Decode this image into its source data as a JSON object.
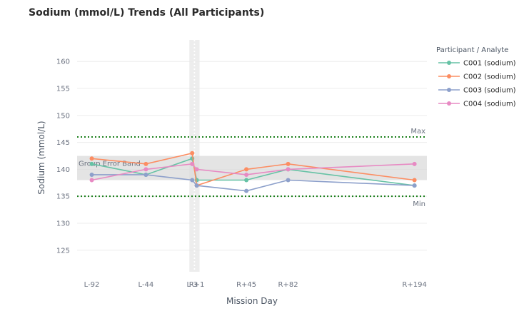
{
  "chart_data": {
    "type": "line",
    "title": "Sodium (mmol/L) Trends (All Participants)",
    "xlabel": "Mission Day",
    "ylabel": "Sodium (mmol/L)",
    "ylim": [
      121,
      164
    ],
    "yticks": [
      125,
      130,
      135,
      140,
      145,
      150,
      155,
      160
    ],
    "x_numeric_range": [
      -105,
      205
    ],
    "categories": [
      {
        "label": "L-92",
        "day": -92
      },
      {
        "label": "L-44",
        "day": -44
      },
      {
        "label": "L-3",
        "day": -3
      },
      {
        "label": "R+1",
        "day": 1
      },
      {
        "label": "R+45",
        "day": 45
      },
      {
        "label": "R+82",
        "day": 82
      },
      {
        "label": "R+194",
        "day": 194
      }
    ],
    "legend_title": "Participant / Analyte",
    "series": [
      {
        "name": "C001 (sodium)",
        "color": "#66c2a5",
        "values": [
          141,
          139,
          142,
          138,
          138,
          140,
          137
        ]
      },
      {
        "name": "C002 (sodium)",
        "color": "#fc8d62",
        "values": [
          142,
          141,
          143,
          137,
          140,
          141,
          138
        ]
      },
      {
        "name": "C003 (sodium)",
        "color": "#8da0cb",
        "values": [
          139,
          139,
          138,
          137,
          136,
          138,
          137
        ]
      },
      {
        "name": "C004 (sodium)",
        "color": "#e78ac3",
        "values": [
          138,
          140,
          141,
          140,
          139,
          140,
          141
        ]
      }
    ],
    "reference_lines": [
      {
        "label": "Max",
        "y": 146,
        "color": "#1a7f1a"
      },
      {
        "label": "Min",
        "y": 135,
        "color": "#1a7f1a"
      }
    ],
    "error_band": {
      "label": "Group Error Band",
      "y_low": 138,
      "y_high": 142.5
    },
    "mission_band": {
      "x_start": -3,
      "x_end": 1
    }
  }
}
